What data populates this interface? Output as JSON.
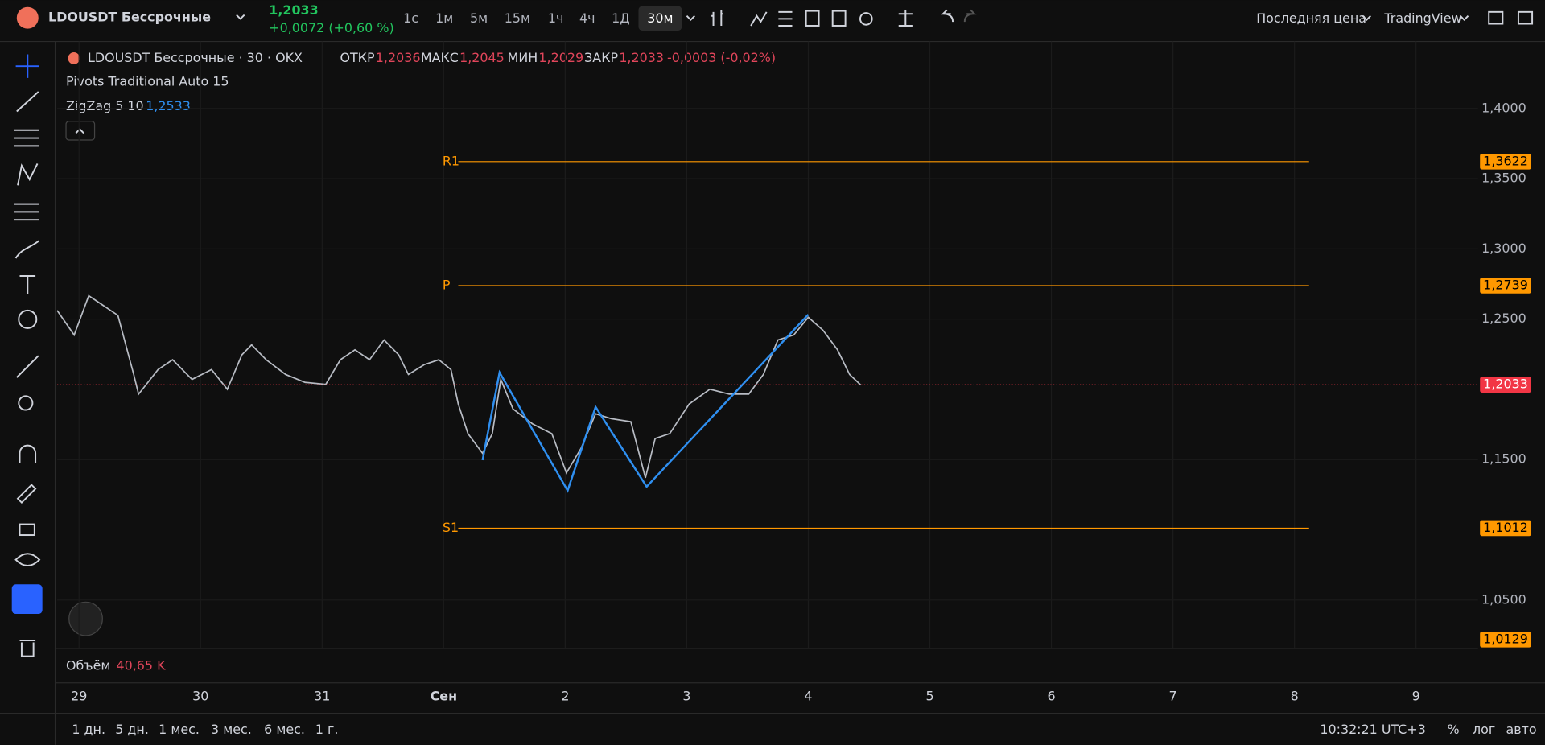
{
  "toolbar": {
    "symbol": "LDOUSDT Бессрочные",
    "price": "1,2033",
    "change": "+0,0072 (+0,60 %)",
    "intervals": [
      "1с",
      "1м",
      "5м",
      "15м",
      "1ч",
      "4ч",
      "1Д",
      "30м"
    ],
    "price_type": "Последняя цена",
    "brand": "TradingView"
  },
  "legend": {
    "title": "LDOUSDT Бессрочные · 30 · OKX",
    "ohlc": [
      {
        "label": "ОТКР",
        "value": "1,2036"
      },
      {
        "label": "МАКС",
        "value": "1,2045"
      },
      {
        "label": "МИН",
        "value": "1,2029"
      },
      {
        "label": "ЗАКР",
        "value": "1,2033"
      }
    ],
    "change": "-0,0003 (-0,02%)",
    "indicators": [
      "Pivots Traditional Auto 15",
      "ZigZag 5 10"
    ],
    "zigzag_value": "1,2533"
  },
  "chart_data": {
    "type": "line",
    "color": "#b8bcc4",
    "x": [
      -0.18,
      -0.04,
      0.08,
      0.2,
      0.32,
      0.45,
      0.49,
      0.65,
      0.77,
      0.93,
      1.09,
      1.22,
      1.34,
      1.42,
      1.54,
      1.7,
      1.86,
      2.03,
      2.15,
      2.27,
      2.39,
      2.51,
      2.63,
      2.71,
      2.84,
      2.96,
      3.06,
      3.12,
      3.2,
      3.32,
      3.4,
      3.47,
      3.57,
      3.73,
      3.89,
      4.01,
      4.13,
      4.25,
      4.38,
      4.54,
      4.66,
      4.74,
      4.86,
      5.02,
      5.19,
      5.35,
      5.51,
      5.63,
      5.75,
      5.88,
      6.0,
      6.12,
      6.24,
      6.34,
      6.43
    ],
    "values": [
      1.2562,
      1.2387,
      1.2667,
      1.2597,
      1.2527,
      1.2106,
      1.1966,
      1.2141,
      1.2211,
      1.2071,
      1.2141,
      1.2001,
      1.2246,
      1.2317,
      1.2211,
      1.2106,
      1.205,
      1.2036,
      1.2211,
      1.2282,
      1.2211,
      1.2352,
      1.2246,
      1.2106,
      1.2176,
      1.2211,
      1.2141,
      1.1896,
      1.1685,
      1.1545,
      1.1685,
      1.2071,
      1.1861,
      1.1755,
      1.1685,
      1.1405,
      1.158,
      1.1826,
      1.1791,
      1.177,
      1.137,
      1.165,
      1.1685,
      1.1896,
      1.2001,
      1.1966,
      1.1966,
      1.2106,
      1.2352,
      1.2387,
      1.2513,
      1.2422,
      1.2282,
      1.2106,
      1.2033
    ],
    "xlim": [
      -0.18,
      11.51
    ],
    "ylim": [
      1.0156,
      1.4477
    ],
    "xticks": [
      {
        "value": 0,
        "label": "29"
      },
      {
        "value": 1,
        "label": "30"
      },
      {
        "value": 2,
        "label": "31"
      },
      {
        "value": 3,
        "label": "Сен"
      },
      {
        "value": 4,
        "label": "2"
      },
      {
        "value": 5,
        "label": "3"
      },
      {
        "value": 6,
        "label": "4"
      },
      {
        "value": 7,
        "label": "5"
      },
      {
        "value": 8,
        "label": "6"
      },
      {
        "value": 9,
        "label": "7"
      },
      {
        "value": 10,
        "label": "8"
      },
      {
        "value": 11,
        "label": "9"
      }
    ],
    "yticks": [
      {
        "value": 1.4,
        "label": "1,4000"
      },
      {
        "value": 1.35,
        "label": "1,3500"
      },
      {
        "value": 1.3,
        "label": "1,3000"
      },
      {
        "value": 1.25,
        "label": "1,2500"
      },
      {
        "value": 1.15,
        "label": "1,1500"
      },
      {
        "value": 1.05,
        "label": "1,0500"
      }
    ],
    "grid": true,
    "zigzag": {
      "color": "#2f8ff0",
      "x": [
        3.32,
        3.46,
        4.02,
        4.25,
        4.67,
        6.0
      ],
      "values": [
        1.1496,
        1.212,
        1.1279,
        1.1875,
        1.1307,
        1.2533
      ]
    },
    "pivots": {
      "color": "#ff9800",
      "start_x": 3.12,
      "end_x": 10.12,
      "levels": [
        {
          "label": "R1",
          "value": 1.3622,
          "value_label": "1,3622"
        },
        {
          "label": "P",
          "value": 1.2739,
          "value_label": "1,2739"
        },
        {
          "label": "S1",
          "value": 1.1012,
          "value_label": "1,1012"
        }
      ]
    },
    "markers": [
      {
        "value": 1.0129,
        "label": "1,0129"
      }
    ],
    "last": {
      "value": 1.2033,
      "label": "1,2033",
      "color": "#f23645"
    }
  },
  "volume": {
    "label": "Объём",
    "value": "40,65 K"
  },
  "footer": {
    "ranges": [
      "1 дн.",
      "5 дн.",
      "1 мес.",
      "3 мес.",
      "6 мес.",
      "1 г."
    ],
    "time": "10:32:21 UTC+3",
    "options": [
      "%",
      "лог",
      "авто"
    ]
  }
}
